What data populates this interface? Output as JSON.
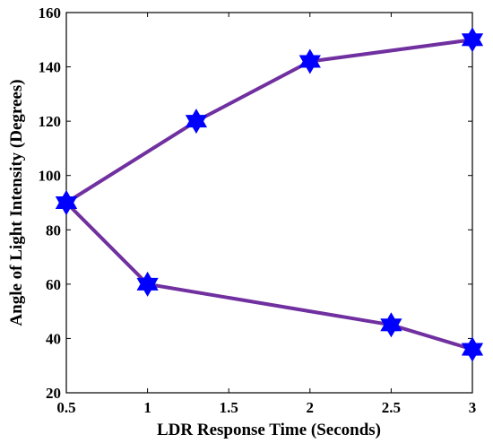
{
  "chart_data": {
    "type": "line",
    "title": "",
    "xlabel": "LDR Response Time (Seconds)",
    "ylabel": "Angle of Light Intensity (Degrees)",
    "xlim": [
      0.5,
      3
    ],
    "ylim": [
      20,
      160
    ],
    "xticks": [
      0.5,
      1,
      1.5,
      2,
      2.5,
      3
    ],
    "xtick_labels": [
      "0.5",
      "1",
      "1.5",
      "2",
      "2.5",
      "3"
    ],
    "yticks": [
      20,
      40,
      60,
      80,
      100,
      120,
      140,
      160
    ],
    "ytick_labels": [
      "20",
      "40",
      "60",
      "80",
      "100",
      "120",
      "140",
      "160"
    ],
    "grid": false,
    "legend": "none",
    "line_color": "#7030A0",
    "marker_color": "#0000FF",
    "marker": "hexagram",
    "series": [
      {
        "x": [
          0.5,
          1.3,
          2,
          3
        ],
        "values": [
          90,
          120,
          142,
          150
        ]
      },
      {
        "x": [
          0.5,
          1,
          2.5,
          3
        ],
        "values": [
          90,
          60,
          45,
          36
        ]
      }
    ]
  }
}
